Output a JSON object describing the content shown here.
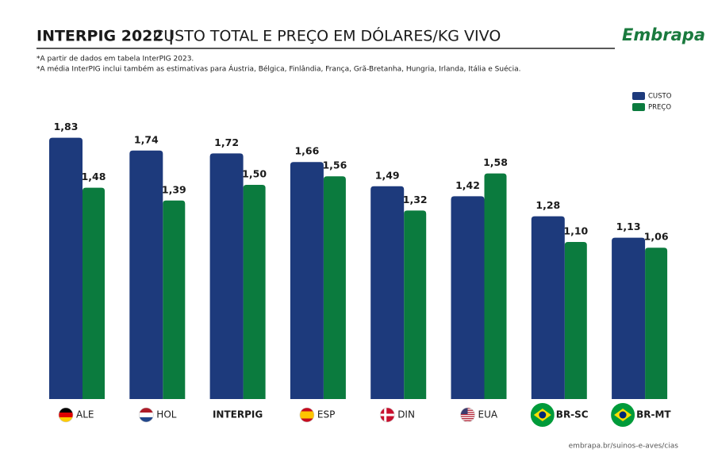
{
  "chart_data": {
    "type": "bar",
    "title": "INTERPIG 2022 |",
    "subtitle": "CUSTO TOTAL E PREÇO EM DÓLARES/KG VIVO",
    "notes": [
      "*A partir de dados em tabela InterPIG 2023.",
      "*A média InterPIG inclui também as estimativas para Áustria, Bélgica, Finlândia, França, Grã-Bretanha, Hungria, Irlanda, Itália e Suécia."
    ],
    "logo": "Embrapa",
    "source": "embrapa.br/suinos-e-aves/cias",
    "categories": [
      "ALE",
      "HOL",
      "INTERPIG",
      "ESP",
      "DIN",
      "EUA",
      "BR-SC",
      "BR-MT"
    ],
    "series": [
      {
        "name": "CUSTO",
        "color": "#1d3a7c",
        "values": [
          1.83,
          1.74,
          1.72,
          1.66,
          1.49,
          1.42,
          1.28,
          1.13
        ],
        "value_labels": [
          "1,83",
          "1,74",
          "1,72",
          "1,66",
          "1,49",
          "1,42",
          "1,28",
          "1,13"
        ]
      },
      {
        "name": "PREÇO",
        "color": "#0b7b3e",
        "values": [
          1.48,
          1.39,
          1.5,
          1.56,
          1.32,
          1.58,
          1.1,
          1.06
        ],
        "value_labels": [
          "1,48",
          "1,39",
          "1,50",
          "1,56",
          "1,32",
          "1,58",
          "1,10",
          "1,06"
        ]
      }
    ],
    "ylim": [
      0,
      2
    ],
    "legend": "top-right"
  }
}
